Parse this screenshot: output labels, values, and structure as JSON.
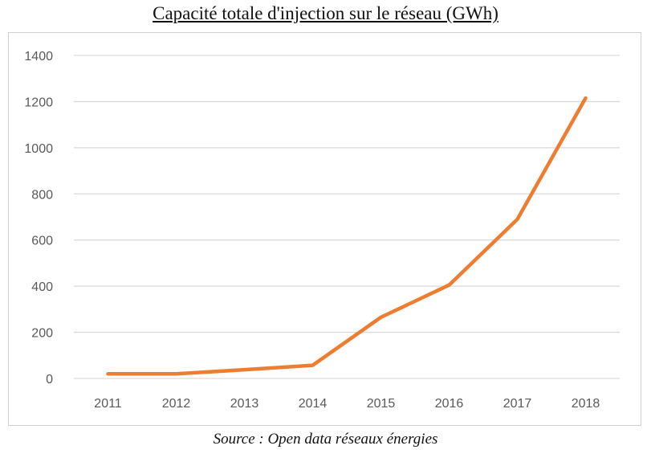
{
  "title": "Capacité totale d'injection sur le réseau (GWh)",
  "source": "Source : Open data réseaux énergies",
  "chart_data": {
    "type": "line",
    "categories": [
      "2011",
      "2012",
      "2013",
      "2014",
      "2015",
      "2016",
      "2017",
      "2018"
    ],
    "series": [
      {
        "values": [
          20,
          20,
          38,
          57,
          265,
          405,
          690,
          1215
        ],
        "color": "#ED7D31"
      }
    ],
    "ylim": [
      0,
      1400
    ],
    "yticks": [
      0,
      200,
      400,
      600,
      800,
      1000,
      1200,
      1400
    ],
    "grid": true,
    "legend": "none"
  }
}
